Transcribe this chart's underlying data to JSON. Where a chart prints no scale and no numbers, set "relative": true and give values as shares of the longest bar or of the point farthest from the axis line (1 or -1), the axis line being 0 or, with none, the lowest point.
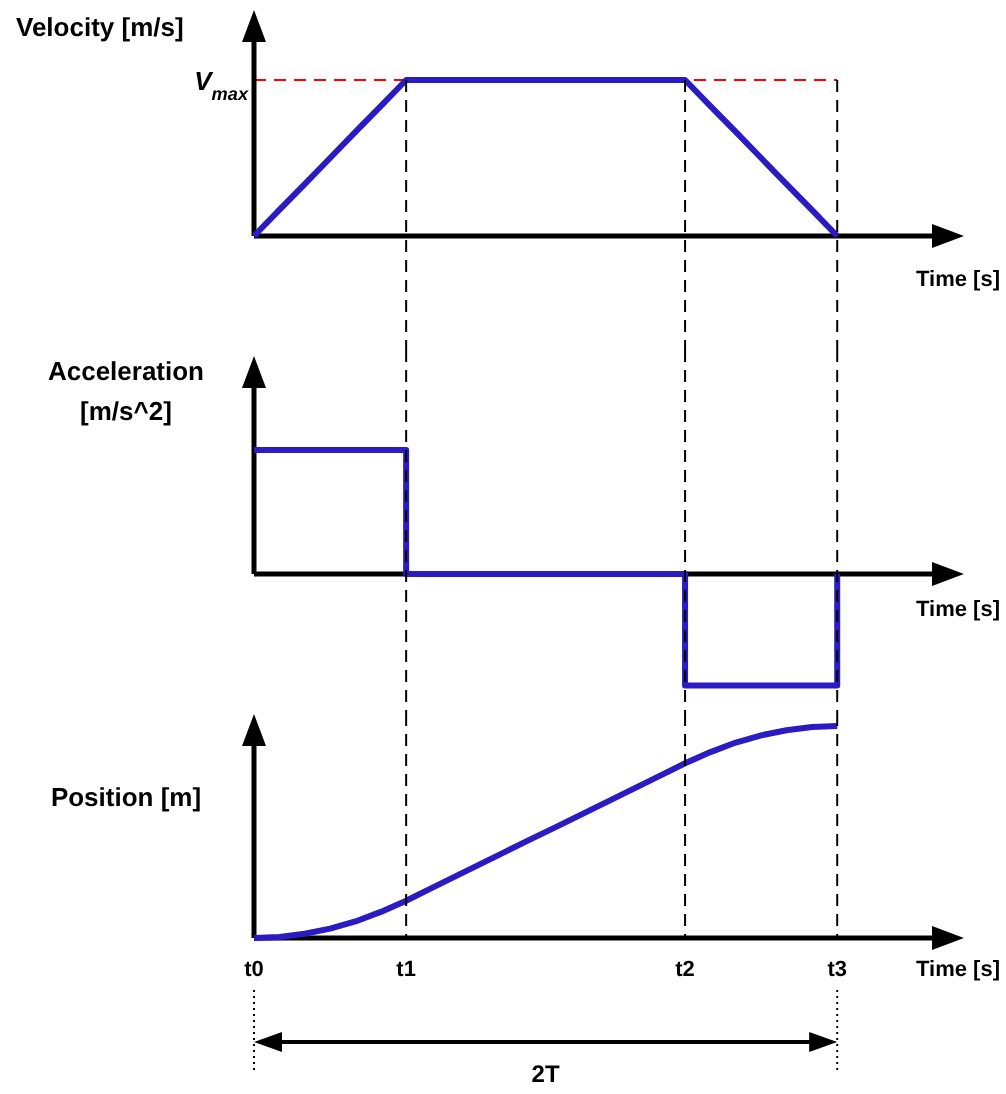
{
  "chart_data": [
    {
      "type": "line",
      "relative": true,
      "ylabel": "Velocity [m/s]",
      "xlabel": "Time [s]",
      "tick_labels": false,
      "categories": [
        "t0",
        null,
        null,
        null,
        null,
        null,
        "t1",
        null,
        null,
        null,
        null,
        null,
        null,
        null,
        null,
        null,
        null,
        "t2",
        null,
        null,
        null,
        null,
        null,
        "t3",
        null,
        null,
        null,
        null,
        null
      ],
      "series": [
        {
          "color": "#2a1bc2",
          "values": [
            0,
            0.167,
            0.333,
            0.5,
            0.667,
            0.833,
            1,
            1,
            1,
            1,
            1,
            1,
            1,
            1,
            1,
            1,
            1,
            1,
            0.833,
            0.667,
            0.5,
            0.333,
            0.167,
            0,
            null,
            null,
            null,
            null,
            null
          ]
        }
      ],
      "ref_lines": [
        {
          "axis": "y",
          "value": 1,
          "label": "V$_{max}$",
          "color": "#ff0000",
          "line_style": "dashed"
        },
        {
          "axis": "x",
          "value": "t1",
          "color": "#000000",
          "line_style": "dashed"
        },
        {
          "axis": "x",
          "value": "t2",
          "color": "#000000",
          "line_style": "dashed"
        },
        {
          "axis": "x",
          "value": "t3",
          "color": "#000000",
          "line_style": "dashed"
        }
      ]
    },
    {
      "type": "step",
      "relative": true,
      "ylabel": "Acceleration [m/s^2]",
      "xlabel": "Time [s]",
      "tick_labels": false,
      "categories": [
        "t0",
        null,
        null,
        null,
        null,
        null,
        "t1",
        null,
        null,
        null,
        null,
        null,
        null,
        null,
        null,
        null,
        null,
        "t2",
        null,
        null,
        null,
        null,
        null,
        "t3",
        null,
        null,
        null,
        null,
        null
      ],
      "series": [
        {
          "color": "#2a1bc2",
          "values": [
            1,
            1,
            1,
            1,
            1,
            1,
            0,
            0,
            0,
            0,
            0,
            0,
            0,
            0,
            0,
            0,
            0,
            -0.9,
            -0.9,
            -0.9,
            -0.9,
            -0.9,
            -0.9,
            0,
            null,
            null,
            null,
            null,
            null
          ]
        }
      ],
      "ref_lines": [
        {
          "axis": "x",
          "value": "t1",
          "color": "#000000",
          "line_style": "dashed"
        },
        {
          "axis": "x",
          "value": "t2",
          "color": "#000000",
          "line_style": "dashed"
        },
        {
          "axis": "x",
          "value": "t3",
          "color": "#000000",
          "line_style": "dashed"
        }
      ]
    },
    {
      "type": "line",
      "relative": true,
      "ylabel": "Position [m]",
      "xlabel": "Time [s]",
      "tick_labels": "x",
      "categories": [
        "t0",
        null,
        null,
        null,
        null,
        null,
        "t1",
        null,
        null,
        null,
        null,
        null,
        null,
        null,
        null,
        null,
        null,
        "t2",
        null,
        null,
        null,
        null,
        null,
        "t3",
        null,
        null,
        null,
        null,
        null
      ],
      "series": [
        {
          "color": "#2a1bc2",
          "values": [
            0,
            0.005,
            0.02,
            0.044,
            0.078,
            0.123,
            0.176,
            0.235,
            0.294,
            0.353,
            0.412,
            0.471,
            0.529,
            0.588,
            0.647,
            0.706,
            0.765,
            0.824,
            0.877,
            0.922,
            0.956,
            0.98,
            0.995,
            1,
            null,
            null,
            null,
            null,
            null
          ]
        }
      ],
      "ref_lines": [
        {
          "axis": "x",
          "value": "t1",
          "color": "#000000",
          "line_style": "dashed"
        },
        {
          "axis": "x",
          "value": "t2",
          "color": "#000000",
          "line_style": "dashed"
        },
        {
          "axis": "x",
          "value": "t3",
          "color": "#000000",
          "line_style": "dashed"
        }
      ],
      "annotations": [
        "2T"
      ]
    }
  ]
}
